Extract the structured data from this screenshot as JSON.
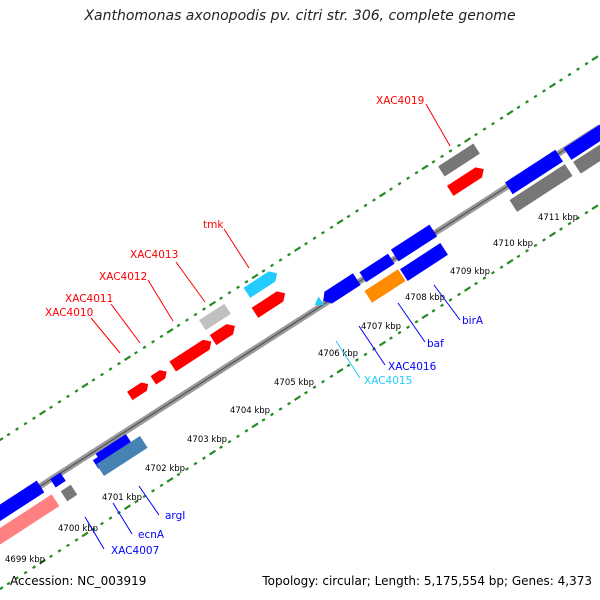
{
  "title": "Xanthomonas axonopodis pv. citri str. 306, complete genome",
  "footer": {
    "accession": "Accession: NC_003919",
    "summary": "Topology: circular; Length: 5,175,554 bp; Genes: 4,373"
  },
  "colors": {
    "red": "#ff0000",
    "blue": "#0000ff",
    "cyan": "#22ccff",
    "orange": "#ff8c00",
    "gray": "#777777",
    "lightgray": "#c0c0c0",
    "pink": "#ff8080",
    "steelblue": "#4682b4",
    "tick": "#228b22"
  },
  "kbp_labels": [
    "4699 kbp",
    "4700 kbp",
    "4701 kbp",
    "4702 kbp",
    "4703 kbp",
    "4704 kbp",
    "4705 kbp",
    "4706 kbp",
    "4707 kbp",
    "4708 kbp",
    "4709 kbp",
    "4710 kbp",
    "4711 kbp"
  ],
  "gene_labels": {
    "top": [
      "XAC4010",
      "XAC4011",
      "XAC4012",
      "XAC4013",
      "tmk",
      "XAC4019"
    ],
    "bottom": [
      "XAC4007",
      "ecnA",
      "argI",
      "XAC4015",
      "XAC4016",
      "baf",
      "birA"
    ]
  }
}
